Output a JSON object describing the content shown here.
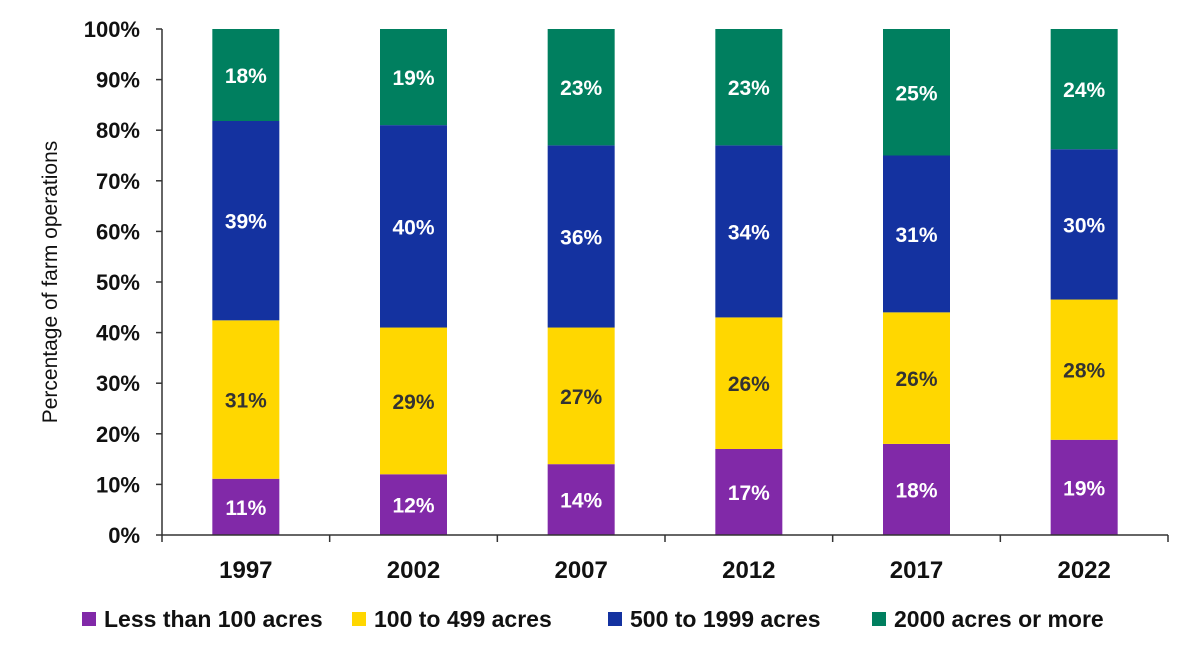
{
  "chart_data": {
    "type": "bar",
    "stacked": true,
    "title": "",
    "xlabel": "",
    "ylabel": "Percentage of farm operations",
    "ylim": [
      0,
      100
    ],
    "yticks": [
      "0%",
      "10%",
      "20%",
      "30%",
      "40%",
      "50%",
      "60%",
      "70%",
      "80%",
      "90%",
      "100%"
    ],
    "grid": false,
    "legend_position": "bottom",
    "categories": [
      "1997",
      "2002",
      "2007",
      "2012",
      "2017",
      "2022"
    ],
    "series": [
      {
        "name": "Less than 100 acres",
        "color": "#8129A8",
        "label_color": "#FFFFFF",
        "values": [
          11,
          12,
          14,
          17,
          18,
          19
        ]
      },
      {
        "name": "100 to 499 acres",
        "color": "#FFD700",
        "label_color": "#333333",
        "values": [
          31,
          29,
          27,
          26,
          26,
          28
        ]
      },
      {
        "name": "500 to 1999 acres",
        "color": "#1432A0",
        "label_color": "#FFFFFF",
        "values": [
          39,
          40,
          36,
          34,
          31,
          30
        ]
      },
      {
        "name": "2000 acres or more",
        "color": "#007F5F",
        "label_color": "#FFFFFF",
        "values": [
          18,
          19,
          23,
          23,
          25,
          24
        ]
      }
    ]
  }
}
